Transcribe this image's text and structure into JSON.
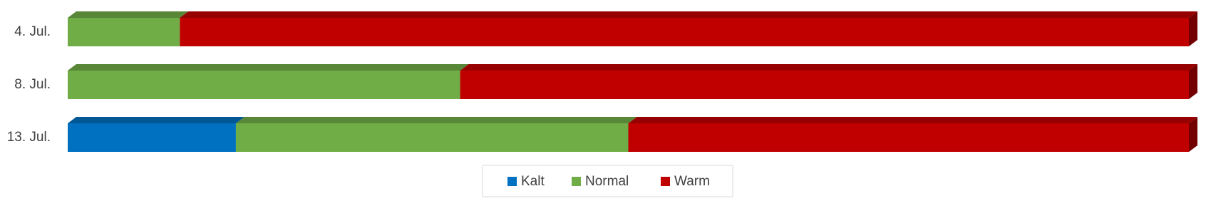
{
  "chart_data": {
    "type": "bar",
    "orientation": "horizontal",
    "stacked": "percent",
    "categories": [
      "4. Jul.",
      "8. Jul.",
      "13. Jul."
    ],
    "series": [
      {
        "name": "Kalt",
        "color": "#0070c0",
        "values": [
          0,
          0,
          15
        ]
      },
      {
        "name": "Normal",
        "color": "#70ad47",
        "values": [
          10,
          35,
          35
        ]
      },
      {
        "name": "Warm",
        "color": "#c00000",
        "values": [
          90,
          65,
          50
        ]
      }
    ],
    "legend": "bottom"
  }
}
